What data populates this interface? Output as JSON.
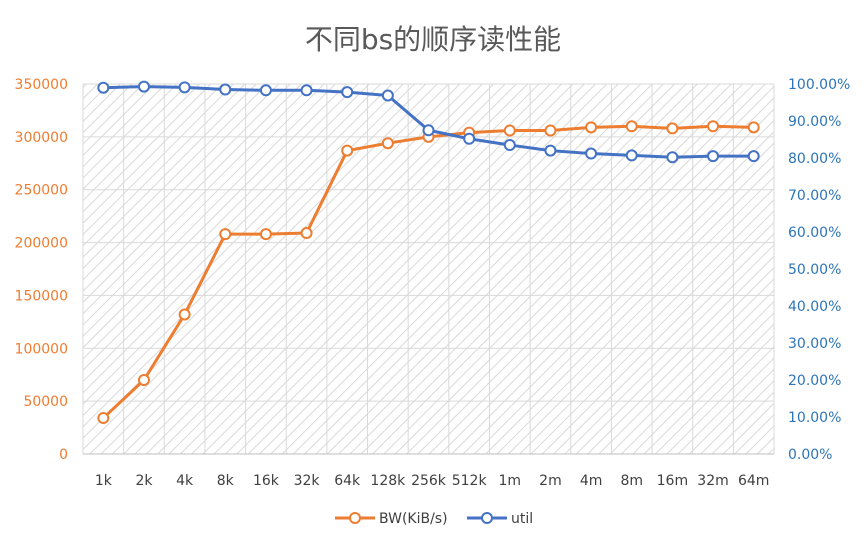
{
  "chart_data": {
    "type": "line",
    "title": "不同bs的顺序读性能",
    "xlabel": "",
    "ylabel": "",
    "y2label": "",
    "categories": [
      "1k",
      "2k",
      "4k",
      "8k",
      "16k",
      "32k",
      "64k",
      "128k",
      "256k",
      "512k",
      "1m",
      "2m",
      "4m",
      "8m",
      "16m",
      "32m",
      "64m"
    ],
    "y_left": {
      "range": [
        0,
        350000
      ],
      "ticks": [
        0,
        50000,
        100000,
        150000,
        200000,
        250000,
        300000,
        350000
      ],
      "tick_labels": [
        "0",
        "50000",
        "100000",
        "150000",
        "200000",
        "250000",
        "300000",
        "350000"
      ],
      "color": "#ED7D31"
    },
    "y_right": {
      "range": [
        0,
        100
      ],
      "ticks": [
        0,
        10,
        20,
        30,
        40,
        50,
        60,
        70,
        80,
        90,
        100
      ],
      "tick_labels": [
        "0.00%",
        "10.00%",
        "20.00%",
        "30.00%",
        "40.00%",
        "50.00%",
        "60.00%",
        "70.00%",
        "80.00%",
        "90.00%",
        "100.00%"
      ],
      "color": "#2E75B6"
    },
    "series": [
      {
        "name": "BW(KiB/s)",
        "axis": "left",
        "color": "#ED7D31",
        "values": [
          34000,
          70000,
          132000,
          208000,
          208000,
          209000,
          287000,
          294000,
          300000,
          304000,
          306000,
          306000,
          309000,
          310000,
          308000,
          310000,
          309000
        ]
      },
      {
        "name": "util",
        "axis": "right",
        "color": "#4472C4",
        "values": [
          99.0,
          99.3,
          99.1,
          98.5,
          98.3,
          98.3,
          97.8,
          96.9,
          87.5,
          85.2,
          83.5,
          82.0,
          81.2,
          80.7,
          80.2,
          80.5,
          80.5
        ]
      }
    ],
    "grid": true,
    "plot_area_pattern": "diagonal-hatch",
    "legend": {
      "position": "bottom"
    }
  }
}
